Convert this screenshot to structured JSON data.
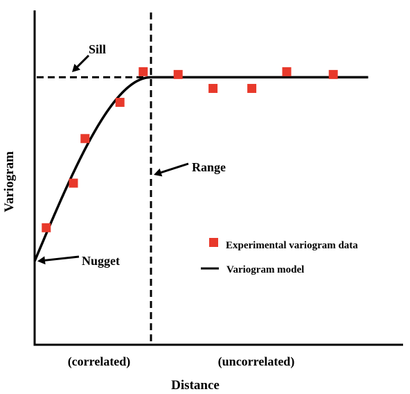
{
  "chart_data": {
    "type": "scatter",
    "title": "",
    "xlabel": "Distance",
    "ylabel": "Variogram",
    "x_region_labels": [
      "(correlated)",
      "(uncorrelated)"
    ],
    "annotations": {
      "sill": "Sill",
      "range": "Range",
      "nugget": "Nugget"
    },
    "nugget": 0.3,
    "sill": 0.96,
    "range": 3.0,
    "xlim": [
      0,
      9.5
    ],
    "ylim": [
      0,
      1.2
    ],
    "grid": false,
    "legend_position": "right",
    "series": [
      {
        "name": "Experimental variogram data",
        "type": "scatter",
        "color": "#e8392b",
        "points": [
          {
            "x": 0.3,
            "y": 0.42
          },
          {
            "x": 1.0,
            "y": 0.58
          },
          {
            "x": 1.3,
            "y": 0.74
          },
          {
            "x": 2.2,
            "y": 0.87
          },
          {
            "x": 2.8,
            "y": 0.98
          },
          {
            "x": 3.7,
            "y": 0.97
          },
          {
            "x": 4.6,
            "y": 0.92
          },
          {
            "x": 5.6,
            "y": 0.92
          },
          {
            "x": 6.5,
            "y": 0.98
          },
          {
            "x": 7.7,
            "y": 0.97
          }
        ]
      },
      {
        "name": "Variogram model",
        "type": "line",
        "color": "#000000",
        "model": "spherical"
      }
    ]
  }
}
